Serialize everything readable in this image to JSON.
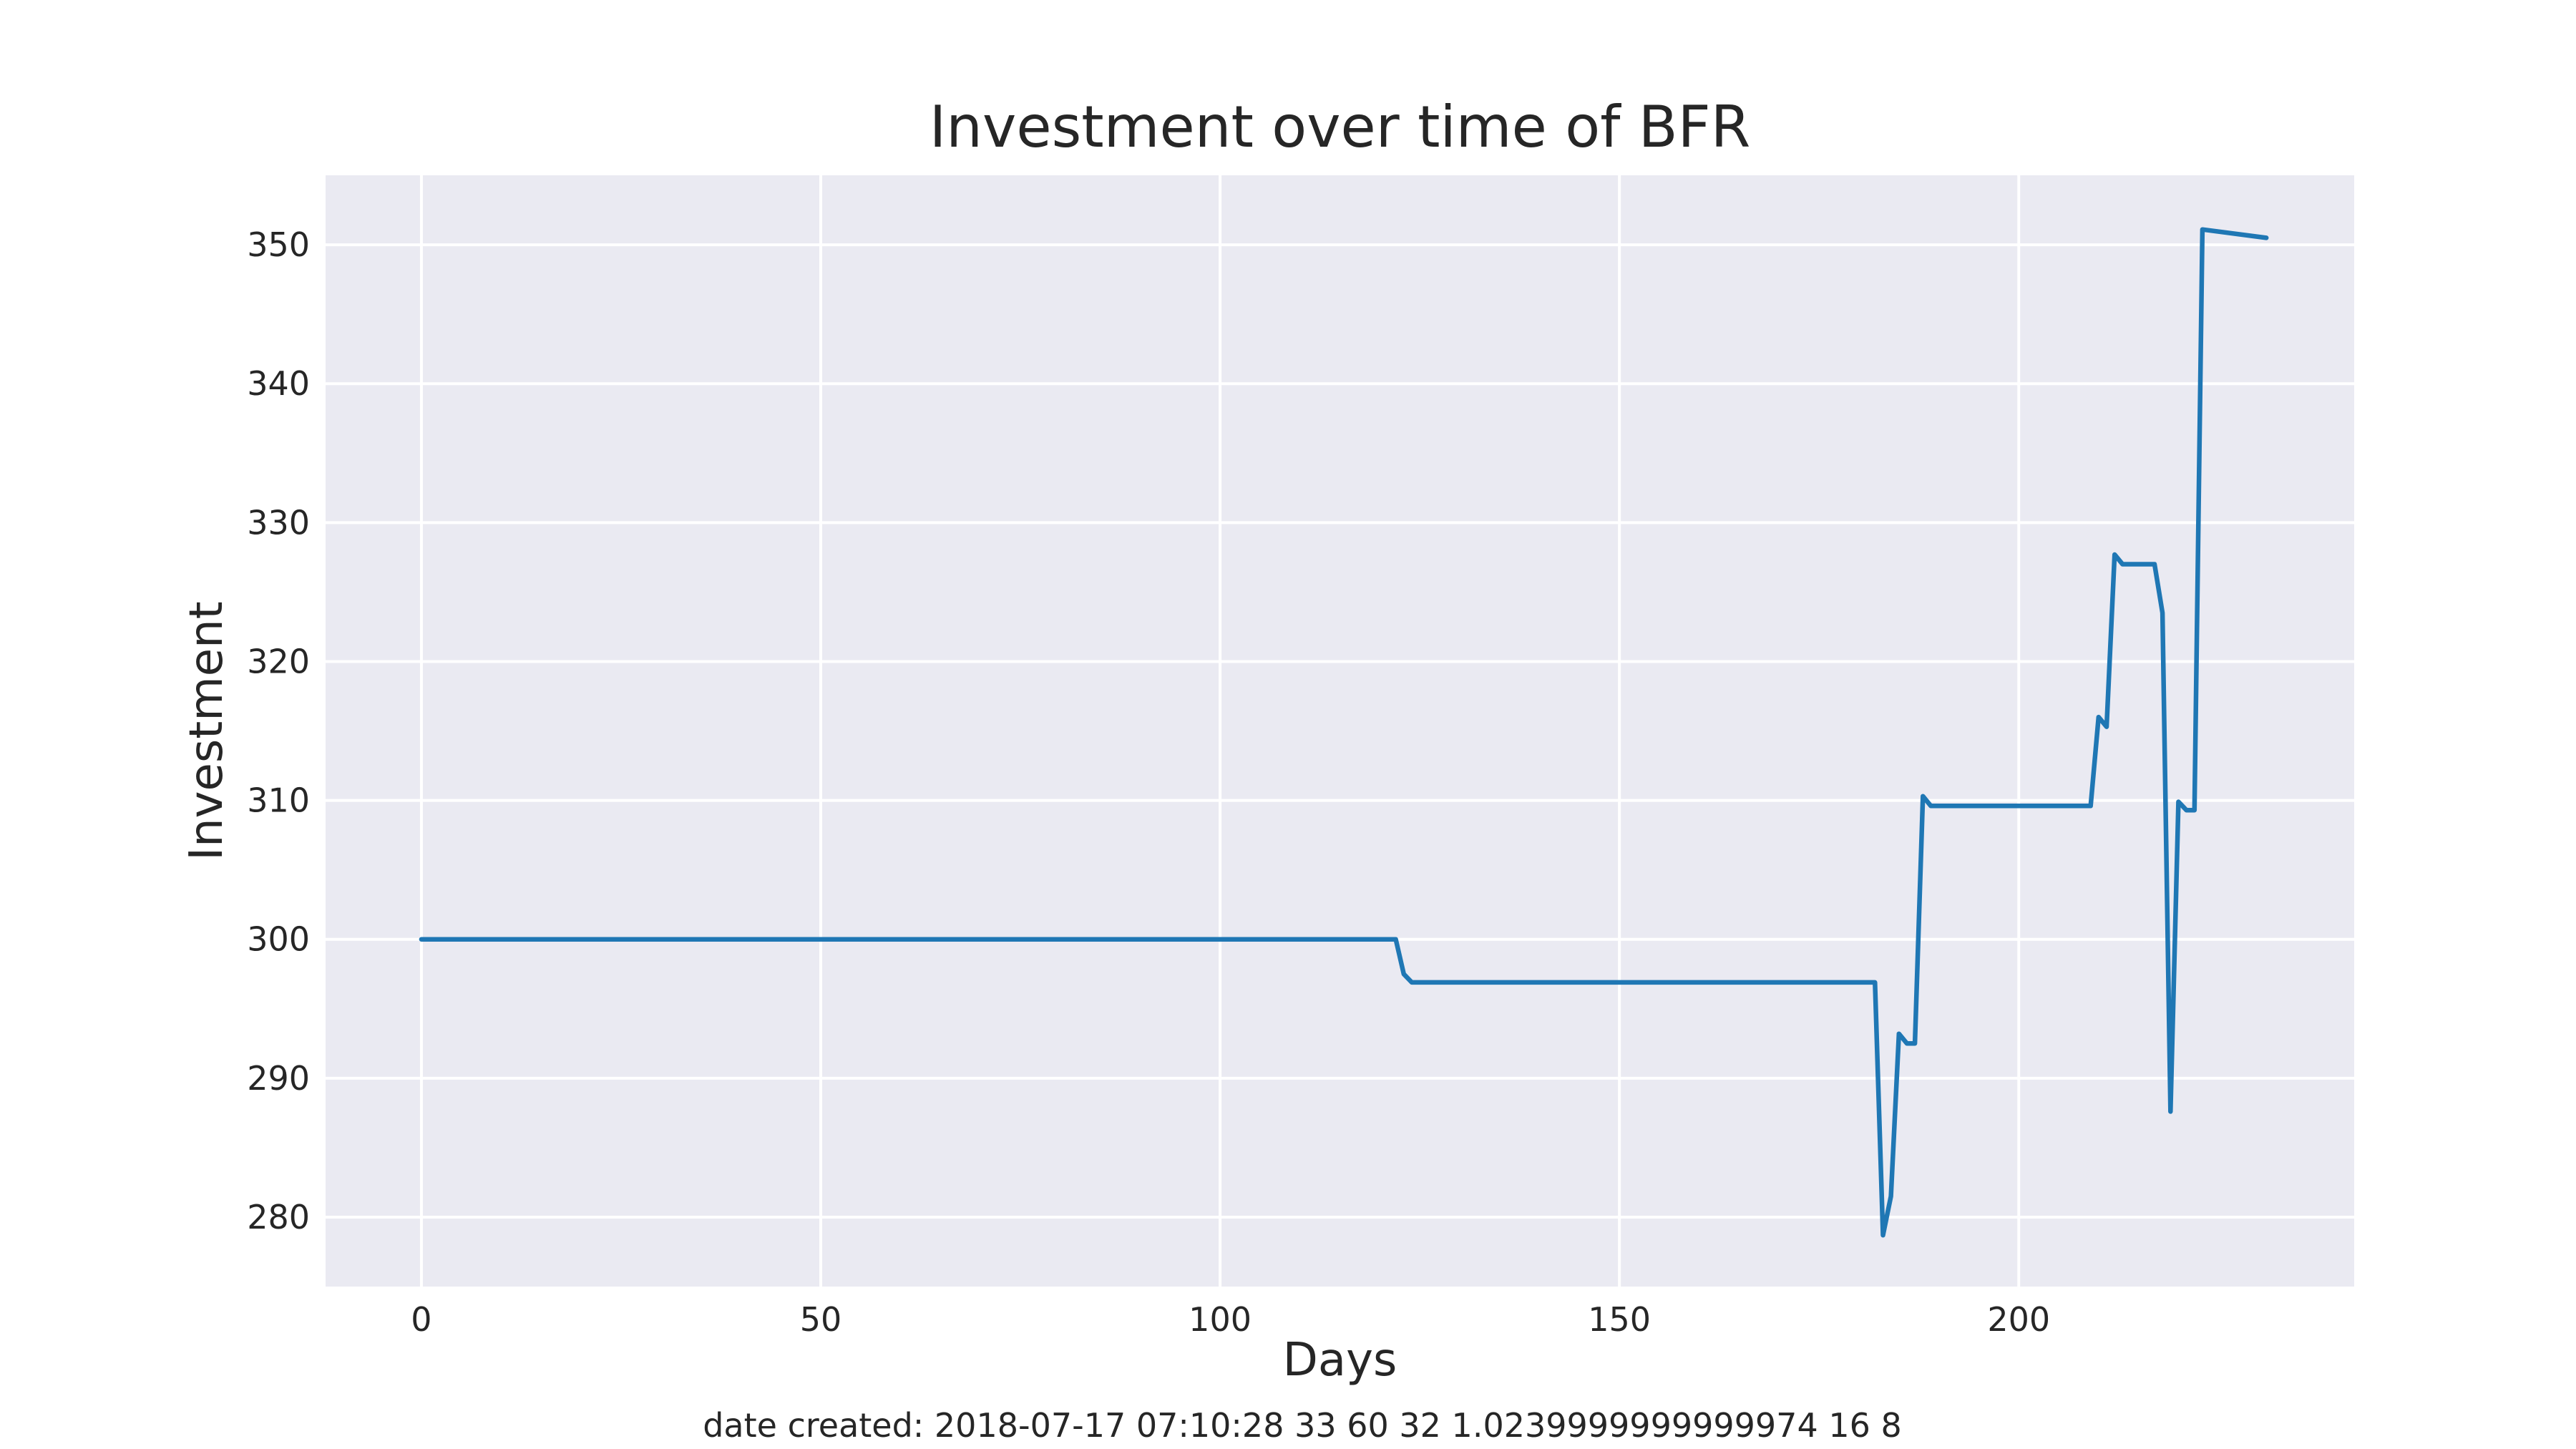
{
  "chart_data": {
    "type": "line",
    "title": "Investment over time of BFR",
    "xlabel": "Days",
    "ylabel": "Investment",
    "footer": "date created: 2018-07-17 07:10:28 33 60 32 1.0239999999999974 16 8",
    "xlim": [
      -12,
      242
    ],
    "ylim": [
      275,
      355
    ],
    "xticks": [
      0,
      50,
      100,
      150,
      200
    ],
    "yticks": [
      280,
      290,
      300,
      310,
      320,
      330,
      340,
      350
    ],
    "grid": true,
    "colors": {
      "background": "#EAEAF2",
      "grid": "#FFFFFF",
      "line": "#1F77B4",
      "text": "#262626"
    },
    "series": [
      {
        "x": [
          0,
          122,
          123,
          124,
          182,
          183,
          184,
          185,
          186,
          187,
          188,
          189,
          209,
          210,
          211,
          212,
          213,
          217,
          218,
          219,
          220,
          221,
          222,
          223,
          231
        ],
        "y": [
          300,
          300,
          297.5,
          296.9,
          296.9,
          278.7,
          281.5,
          293.2,
          292.5,
          292.5,
          310.3,
          309.6,
          309.6,
          316.0,
          315.3,
          327.7,
          327.0,
          327.0,
          323.5,
          287.6,
          309.9,
          309.3,
          309.3,
          351.1,
          350.5
        ]
      }
    ]
  }
}
